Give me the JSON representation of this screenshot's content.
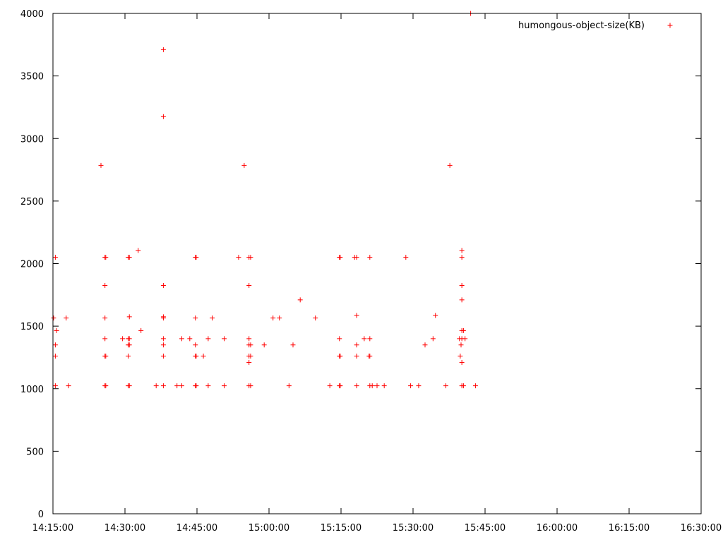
{
  "chart_data": {
    "type": "scatter",
    "marker": "plus",
    "xlim": [
      "14:15:00",
      "16:30:00"
    ],
    "ylim": [
      0,
      4000
    ],
    "x_ticks": [
      "14:15:00",
      "14:30:00",
      "14:45:00",
      "15:00:00",
      "15:15:00",
      "15:30:00",
      "15:45:00",
      "16:00:00",
      "16:15:00",
      "16:30:00"
    ],
    "y_ticks": [
      0,
      500,
      1000,
      1500,
      2000,
      2500,
      3000,
      3500,
      4000
    ],
    "grid": false,
    "legend_position": "top-right",
    "series": [
      {
        "name": "humongous-object-size(KB)",
        "color": "#ff0000",
        "points": [
          [
            "14:15:08",
            1565
          ],
          [
            "14:15:30",
            1023
          ],
          [
            "14:15:30",
            1260
          ],
          [
            "14:15:30",
            1350
          ],
          [
            "14:15:30",
            2050
          ],
          [
            "14:15:45",
            1465
          ],
          [
            "14:17:45",
            1565
          ],
          [
            "14:18:15",
            1023
          ],
          [
            "14:25:00",
            2785
          ],
          [
            "14:25:50",
            2050
          ],
          [
            "14:25:50",
            1825
          ],
          [
            "14:25:50",
            1565
          ],
          [
            "14:25:50",
            1400
          ],
          [
            "14:25:50",
            1260
          ],
          [
            "14:25:50",
            1023
          ],
          [
            "14:26:00",
            2050
          ],
          [
            "14:26:00",
            1260
          ],
          [
            "14:26:00",
            1023
          ],
          [
            "14:29:30",
            1400
          ],
          [
            "14:30:40",
            1350
          ],
          [
            "14:30:40",
            1400
          ],
          [
            "14:30:40",
            1260
          ],
          [
            "14:30:40",
            1023
          ],
          [
            "14:30:40",
            2050
          ],
          [
            "14:30:55",
            1575
          ],
          [
            "14:30:55",
            2050
          ],
          [
            "14:30:55",
            1350
          ],
          [
            "14:30:55",
            1023
          ],
          [
            "14:30:55",
            1400
          ],
          [
            "14:32:45",
            2105
          ],
          [
            "14:33:20",
            1465
          ],
          [
            "14:36:30",
            1023
          ],
          [
            "14:38:00",
            3710
          ],
          [
            "14:38:00",
            3175
          ],
          [
            "14:38:00",
            1825
          ],
          [
            "14:38:00",
            1575
          ],
          [
            "14:38:00",
            1565
          ],
          [
            "14:38:00",
            1400
          ],
          [
            "14:38:00",
            1350
          ],
          [
            "14:38:00",
            1260
          ],
          [
            "14:38:00",
            1023
          ],
          [
            "14:40:50",
            1023
          ],
          [
            "14:41:50",
            1400
          ],
          [
            "14:41:50",
            1023
          ],
          [
            "14:43:30",
            1400
          ],
          [
            "14:44:40",
            2050
          ],
          [
            "14:44:40",
            1565
          ],
          [
            "14:44:40",
            1350
          ],
          [
            "14:44:40",
            1260
          ],
          [
            "14:44:40",
            1023
          ],
          [
            "14:44:50",
            2050
          ],
          [
            "14:44:50",
            1260
          ],
          [
            "14:44:50",
            1023
          ],
          [
            "14:46:20",
            1260
          ],
          [
            "14:47:20",
            1400
          ],
          [
            "14:47:20",
            1023
          ],
          [
            "14:48:10",
            1565
          ],
          [
            "14:50:40",
            1400
          ],
          [
            "14:50:40",
            1023
          ],
          [
            "14:53:40",
            2050
          ],
          [
            "14:54:50",
            2785
          ],
          [
            "14:55:50",
            2050
          ],
          [
            "14:55:50",
            1825
          ],
          [
            "14:55:50",
            1400
          ],
          [
            "14:55:50",
            1350
          ],
          [
            "14:55:50",
            1260
          ],
          [
            "14:55:50",
            1210
          ],
          [
            "14:55:50",
            1023
          ],
          [
            "14:56:10",
            2050
          ],
          [
            "14:56:10",
            1350
          ],
          [
            "14:56:10",
            1260
          ],
          [
            "14:56:10",
            1023
          ],
          [
            "14:59:00",
            1350
          ],
          [
            "15:00:50",
            1565
          ],
          [
            "15:02:10",
            1565
          ],
          [
            "15:04:10",
            1023
          ],
          [
            "15:05:00",
            1350
          ],
          [
            "15:06:30",
            1710
          ],
          [
            "15:09:40",
            1565
          ],
          [
            "15:12:40",
            1023
          ],
          [
            "15:14:40",
            2050
          ],
          [
            "15:14:40",
            1400
          ],
          [
            "15:14:40",
            1260
          ],
          [
            "15:14:40",
            1023
          ],
          [
            "15:14:50",
            2050
          ],
          [
            "15:14:50",
            1260
          ],
          [
            "15:14:50",
            1023
          ],
          [
            "15:17:50",
            2050
          ],
          [
            "15:18:15",
            2050
          ],
          [
            "15:18:15",
            1585
          ],
          [
            "15:18:15",
            1350
          ],
          [
            "15:18:15",
            1260
          ],
          [
            "15:18:15",
            1023
          ],
          [
            "15:19:50",
            1400
          ],
          [
            "15:21:00",
            2050
          ],
          [
            "15:21:00",
            1400
          ],
          [
            "15:21:00",
            1260
          ],
          [
            "15:21:00",
            1023
          ],
          [
            "15:20:50",
            1260
          ],
          [
            "15:21:30",
            1023
          ],
          [
            "15:22:30",
            1023
          ],
          [
            "15:24:00",
            1023
          ],
          [
            "15:28:30",
            2050
          ],
          [
            "15:29:30",
            1023
          ],
          [
            "15:31:10",
            1023
          ],
          [
            "15:32:30",
            1350
          ],
          [
            "15:34:10",
            1400
          ],
          [
            "15:34:40",
            1585
          ],
          [
            "15:36:50",
            1023
          ],
          [
            "15:37:40",
            2785
          ],
          [
            "15:39:40",
            1400
          ],
          [
            "15:39:50",
            1260
          ],
          [
            "15:40:00",
            1350
          ],
          [
            "15:40:10",
            1825
          ],
          [
            "15:40:10",
            1710
          ],
          [
            "15:40:10",
            1465
          ],
          [
            "15:40:10",
            1400
          ],
          [
            "15:40:10",
            2105
          ],
          [
            "15:40:10",
            2050
          ],
          [
            "15:40:10",
            1023
          ],
          [
            "15:40:10",
            1210
          ],
          [
            "15:40:30",
            1465
          ],
          [
            "15:40:30",
            1023
          ],
          [
            "15:40:50",
            1400
          ],
          [
            "15:42:00",
            4000
          ],
          [
            "15:43:00",
            1023
          ]
        ]
      }
    ]
  }
}
